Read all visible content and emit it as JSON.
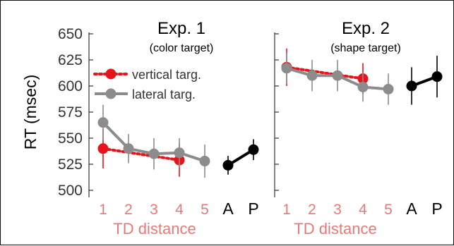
{
  "colors": {
    "vertical": "#e8141c",
    "lateral": "#8c8c8c",
    "ap": "#000000",
    "td_label": "#e87878",
    "axis": "#333333"
  },
  "chart_data": [
    {
      "type": "line",
      "title": "Exp. 1",
      "subtitle": "(color target)",
      "ylabel": "RT (msec)",
      "xlabel": "TD distance",
      "ylim": [
        500,
        650
      ],
      "yticks": [
        500,
        525,
        550,
        575,
        600,
        625,
        650
      ],
      "categories": [
        "1",
        "2",
        "3",
        "4",
        "5",
        "A",
        "P"
      ],
      "legend": {
        "placement": "left",
        "entries": [
          "vertical targ.",
          "lateral targ."
        ]
      },
      "series": [
        {
          "name": "vertical targ.",
          "style": "dotted",
          "x": [
            "1",
            "4"
          ],
          "values": [
            540,
            529
          ],
          "err": [
            19,
            16
          ]
        },
        {
          "name": "lateral targ.",
          "style": "solid",
          "x": [
            "1",
            "2",
            "3",
            "4",
            "5"
          ],
          "values": [
            565,
            540,
            535,
            536,
            528
          ],
          "err": [
            17,
            14,
            15,
            14,
            16
          ]
        },
        {
          "name": "",
          "style": "solid-black",
          "x": [
            "A",
            "P"
          ],
          "values": [
            524,
            539
          ],
          "err": [
            9,
            10
          ]
        }
      ]
    },
    {
      "type": "line",
      "title": "Exp. 2",
      "subtitle": "(shape target)",
      "xlabel": "TD distance",
      "ylim": [
        500,
        650
      ],
      "categories": [
        "1",
        "2",
        "3",
        "4",
        "5",
        "A",
        "P"
      ],
      "series": [
        {
          "name": "vertical targ.",
          "style": "dotted",
          "x": [
            "1",
            "4"
          ],
          "values": [
            618,
            607
          ],
          "err": [
            18,
            15
          ]
        },
        {
          "name": "lateral targ.",
          "style": "solid",
          "x": [
            "1",
            "2",
            "3",
            "4",
            "5"
          ],
          "values": [
            617,
            610,
            610,
            599,
            597
          ],
          "err": [
            15,
            15,
            15,
            14,
            15
          ]
        },
        {
          "name": "",
          "style": "solid-black",
          "x": [
            "A",
            "P"
          ],
          "values": [
            600,
            609
          ],
          "err": [
            18,
            20
          ]
        }
      ]
    }
  ]
}
